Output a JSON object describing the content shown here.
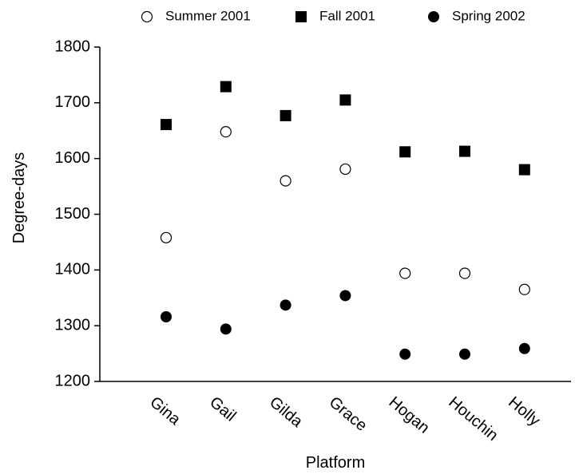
{
  "chart_data": {
    "type": "scatter",
    "x_label": "Platform",
    "y_label": "Degree-days",
    "categories": [
      "Gina",
      "Gail",
      "Gilda",
      "Grace",
      "Hogan",
      "Houchin",
      "Holly"
    ],
    "series": [
      {
        "name": "Summer 2001",
        "marker": "open-circle",
        "color": "#000000",
        "values": [
          1458,
          1648,
          1560,
          1581,
          1394,
          1394,
          1365
        ]
      },
      {
        "name": "Fall 2001",
        "marker": "square",
        "color": "#000000",
        "values": [
          1661,
          1729,
          1677,
          1705,
          1612,
          1613,
          1580
        ]
      },
      {
        "name": "Spring 2002",
        "marker": "circle",
        "color": "#000000",
        "values": [
          1316,
          1294,
          1337,
          1354,
          1249,
          1249,
          1259
        ]
      }
    ],
    "ylim": [
      1200,
      1800
    ],
    "yticks": [
      1200,
      1300,
      1400,
      1500,
      1600,
      1700,
      1800
    ],
    "legend": "top"
  }
}
